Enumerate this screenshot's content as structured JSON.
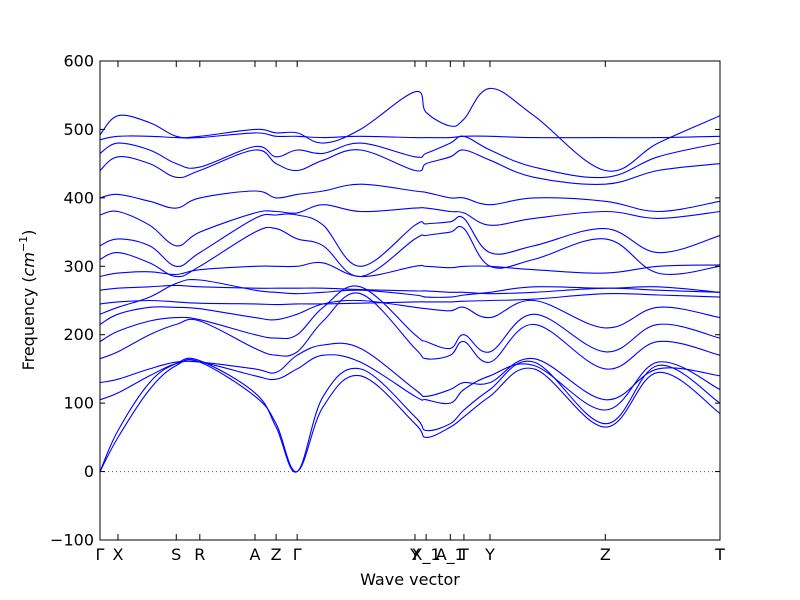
{
  "chart_data": {
    "type": "line",
    "title": "",
    "xlabel": "Wave vector",
    "ylabel_prefix": "Frequency (",
    "ylabel_unit": "cm",
    "ylabel_exp": "−1",
    "ylabel_suffix": ")",
    "ylim": [
      -100,
      600
    ],
    "xlim": [
      0,
      1
    ],
    "yticks": [
      -100,
      0,
      100,
      200,
      300,
      400,
      500,
      600
    ],
    "ytick_labels": [
      "−100",
      "0",
      "100",
      "200",
      "300",
      "400",
      "500",
      "600"
    ],
    "grid": false,
    "legend": "none",
    "line_color": "#0000ff",
    "zero_line_color": "#555555",
    "special_points": [
      {
        "label": "Γ",
        "x": 0.0
      },
      {
        "label": "X",
        "x": 0.029
      },
      {
        "label": "S",
        "x": 0.123
      },
      {
        "label": "R",
        "x": 0.161
      },
      {
        "label": "A",
        "x": 0.25
      },
      {
        "label": "Z",
        "x": 0.284
      },
      {
        "label": "Γ",
        "x": 0.318
      },
      {
        "label": "Y",
        "x": 0.508
      },
      {
        "label": "X_1",
        "x": 0.526
      },
      {
        "label": "A_1",
        "x": 0.565
      },
      {
        "label": "T",
        "x": 0.587
      },
      {
        "label": "Y",
        "x": 0.629
      },
      {
        "label": "Z",
        "x": 0.815
      },
      {
        "label": "T",
        "x": 1.0
      }
    ],
    "branches": [
      {
        "x": [
          0,
          0.029,
          0.08,
          0.123,
          0.161,
          0.25,
          0.284,
          0.318,
          0.36,
          0.42,
          0.508,
          0.526,
          0.565,
          0.587,
          0.629,
          0.7,
          0.815,
          0.9,
          1.0
        ],
        "y": [
          0,
          50,
          120,
          155,
          160,
          110,
          70,
          0,
          95,
          140,
          70,
          50,
          65,
          80,
          110,
          150,
          65,
          145,
          85
        ]
      },
      {
        "x": [
          0,
          0.029,
          0.08,
          0.123,
          0.161,
          0.25,
          0.284,
          0.318,
          0.36,
          0.42,
          0.508,
          0.526,
          0.565,
          0.587,
          0.629,
          0.7,
          0.815,
          0.9,
          1.0
        ],
        "y": [
          0,
          60,
          130,
          158,
          162,
          115,
          65,
          0,
          110,
          150,
          80,
          60,
          70,
          90,
          120,
          160,
          70,
          155,
          100
        ]
      },
      {
        "x": [
          0,
          0.029,
          0.08,
          0.123,
          0.161,
          0.25,
          0.284,
          0.318,
          0.36,
          0.42,
          0.508,
          0.526,
          0.565,
          0.587,
          0.629,
          0.7,
          0.815,
          0.9,
          1.0
        ],
        "y": [
          105,
          115,
          140,
          158,
          160,
          140,
          135,
          150,
          170,
          160,
          110,
          105,
          100,
          120,
          140,
          155,
          90,
          160,
          120
        ]
      },
      {
        "x": [
          0,
          0.029,
          0.08,
          0.123,
          0.161,
          0.25,
          0.284,
          0.318,
          0.36,
          0.42,
          0.508,
          0.526,
          0.565,
          0.587,
          0.629,
          0.7,
          0.815,
          0.9,
          1.0
        ],
        "y": [
          130,
          135,
          150,
          160,
          160,
          150,
          145,
          170,
          185,
          180,
          120,
          110,
          120,
          130,
          130,
          165,
          105,
          150,
          140
        ]
      },
      {
        "x": [
          0,
          0.029,
          0.08,
          0.123,
          0.161,
          0.25,
          0.284,
          0.318,
          0.36,
          0.42,
          0.508,
          0.526,
          0.565,
          0.587,
          0.629,
          0.7,
          0.815,
          0.9,
          1.0
        ],
        "y": [
          165,
          175,
          200,
          215,
          220,
          180,
          170,
          175,
          220,
          260,
          180,
          165,
          170,
          190,
          160,
          215,
          150,
          190,
          170
        ]
      },
      {
        "x": [
          0,
          0.029,
          0.08,
          0.123,
          0.161,
          0.25,
          0.284,
          0.318,
          0.36,
          0.42,
          0.508,
          0.526,
          0.565,
          0.587,
          0.629,
          0.7,
          0.815,
          0.9,
          1.0
        ],
        "y": [
          190,
          205,
          220,
          225,
          222,
          200,
          195,
          200,
          240,
          270,
          200,
          190,
          180,
          200,
          175,
          230,
          175,
          215,
          195
        ]
      },
      {
        "x": [
          0,
          0.029,
          0.08,
          0.123,
          0.161,
          0.25,
          0.284,
          0.318,
          0.36,
          0.42,
          0.508,
          0.526,
          0.565,
          0.587,
          0.629,
          0.7,
          0.815,
          0.9,
          1.0
        ],
        "y": [
          215,
          230,
          240,
          240,
          238,
          225,
          222,
          230,
          245,
          250,
          240,
          238,
          235,
          240,
          225,
          250,
          210,
          240,
          225
        ]
      },
      {
        "x": [
          0,
          0.029,
          0.08,
          0.123,
          0.161,
          0.25,
          0.284,
          0.318,
          0.36,
          0.42,
          0.508,
          0.526,
          0.565,
          0.587,
          0.629,
          0.7,
          0.815,
          0.9,
          1.0
        ],
        "y": [
          230,
          240,
          255,
          275,
          280,
          265,
          262,
          260,
          262,
          265,
          258,
          255,
          255,
          258,
          262,
          270,
          268,
          270,
          262
        ]
      },
      {
        "x": [
          0,
          0.029,
          0.08,
          0.123,
          0.161,
          0.25,
          0.284,
          0.318,
          0.36,
          0.42,
          0.508,
          0.526,
          0.565,
          0.587,
          0.629,
          0.7,
          0.815,
          0.9,
          1.0
        ],
        "y": [
          245,
          248,
          250,
          248,
          246,
          245,
          244,
          245,
          245,
          246,
          248,
          248,
          248,
          249,
          250,
          252,
          260,
          258,
          255
        ]
      },
      {
        "x": [
          0,
          0.029,
          0.08,
          0.123,
          0.161,
          0.25,
          0.284,
          0.318,
          0.36,
          0.42,
          0.508,
          0.526,
          0.565,
          0.587,
          0.629,
          0.7,
          0.815,
          0.9,
          1.0
        ],
        "y": [
          265,
          268,
          270,
          272,
          270,
          268,
          268,
          268,
          268,
          266,
          264,
          264,
          262,
          262,
          260,
          262,
          268,
          265,
          262
        ]
      },
      {
        "x": [
          0,
          0.029,
          0.08,
          0.123,
          0.161,
          0.25,
          0.284,
          0.318,
          0.36,
          0.42,
          0.508,
          0.526,
          0.565,
          0.587,
          0.629,
          0.7,
          0.815,
          0.9,
          1.0
        ],
        "y": [
          285,
          290,
          292,
          288,
          295,
          300,
          300,
          300,
          305,
          285,
          300,
          300,
          298,
          300,
          300,
          295,
          290,
          300,
          302
        ]
      },
      {
        "x": [
          0,
          0.029,
          0.08,
          0.123,
          0.161,
          0.25,
          0.284,
          0.318,
          0.36,
          0.42,
          0.508,
          0.526,
          0.565,
          0.587,
          0.629,
          0.7,
          0.815,
          0.9,
          1.0
        ],
        "y": [
          310,
          320,
          305,
          285,
          300,
          350,
          355,
          340,
          330,
          285,
          340,
          345,
          350,
          355,
          300,
          310,
          340,
          290,
          300
        ]
      },
      {
        "x": [
          0,
          0.029,
          0.08,
          0.123,
          0.161,
          0.25,
          0.284,
          0.318,
          0.36,
          0.42,
          0.508,
          0.526,
          0.565,
          0.587,
          0.629,
          0.7,
          0.815,
          0.9,
          1.0
        ],
        "y": [
          330,
          340,
          330,
          300,
          320,
          370,
          375,
          375,
          360,
          300,
          360,
          362,
          365,
          370,
          320,
          330,
          355,
          320,
          345
        ]
      },
      {
        "x": [
          0,
          0.029,
          0.08,
          0.123,
          0.161,
          0.25,
          0.284,
          0.318,
          0.36,
          0.42,
          0.508,
          0.526,
          0.565,
          0.587,
          0.629,
          0.7,
          0.815,
          0.9,
          1.0
        ],
        "y": [
          375,
          380,
          360,
          330,
          350,
          378,
          380,
          378,
          390,
          380,
          385,
          385,
          380,
          378,
          360,
          370,
          380,
          370,
          380
        ]
      },
      {
        "x": [
          0,
          0.029,
          0.08,
          0.123,
          0.161,
          0.25,
          0.284,
          0.318,
          0.36,
          0.42,
          0.508,
          0.526,
          0.565,
          0.587,
          0.629,
          0.7,
          0.815,
          0.9,
          1.0
        ],
        "y": [
          400,
          405,
          395,
          385,
          400,
          410,
          400,
          405,
          410,
          420,
          410,
          408,
          400,
          400,
          390,
          400,
          395,
          380,
          395
        ]
      },
      {
        "x": [
          0,
          0.029,
          0.08,
          0.123,
          0.161,
          0.25,
          0.284,
          0.318,
          0.36,
          0.42,
          0.508,
          0.526,
          0.565,
          0.587,
          0.629,
          0.7,
          0.815,
          0.9,
          1.0
        ],
        "y": [
          440,
          460,
          450,
          430,
          440,
          470,
          450,
          440,
          455,
          470,
          440,
          450,
          460,
          470,
          455,
          430,
          420,
          440,
          450
        ]
      },
      {
        "x": [
          0,
          0.029,
          0.08,
          0.123,
          0.161,
          0.25,
          0.284,
          0.318,
          0.36,
          0.42,
          0.508,
          0.526,
          0.565,
          0.587,
          0.629,
          0.7,
          0.815,
          0.9,
          1.0
        ],
        "y": [
          465,
          480,
          470,
          450,
          445,
          475,
          460,
          470,
          465,
          480,
          460,
          465,
          480,
          490,
          470,
          445,
          430,
          460,
          480
        ]
      },
      {
        "x": [
          0,
          0.029,
          0.08,
          0.123,
          0.161,
          0.25,
          0.284,
          0.318,
          0.36,
          0.42,
          0.508,
          0.526,
          0.565,
          0.587,
          0.629,
          0.7,
          0.815,
          0.9,
          1.0
        ],
        "y": [
          485,
          490,
          490,
          488,
          488,
          495,
          490,
          490,
          488,
          490,
          488,
          488,
          488,
          490,
          490,
          488,
          488,
          488,
          490
        ]
      },
      {
        "x": [
          0,
          0.029,
          0.08,
          0.123,
          0.161,
          0.25,
          0.284,
          0.318,
          0.36,
          0.42,
          0.508,
          0.526,
          0.565,
          0.587,
          0.629,
          0.7,
          0.815,
          0.9,
          1.0
        ],
        "y": [
          492,
          520,
          510,
          490,
          490,
          500,
          495,
          495,
          480,
          500,
          555,
          525,
          505,
          515,
          560,
          520,
          440,
          480,
          520
        ]
      }
    ]
  }
}
